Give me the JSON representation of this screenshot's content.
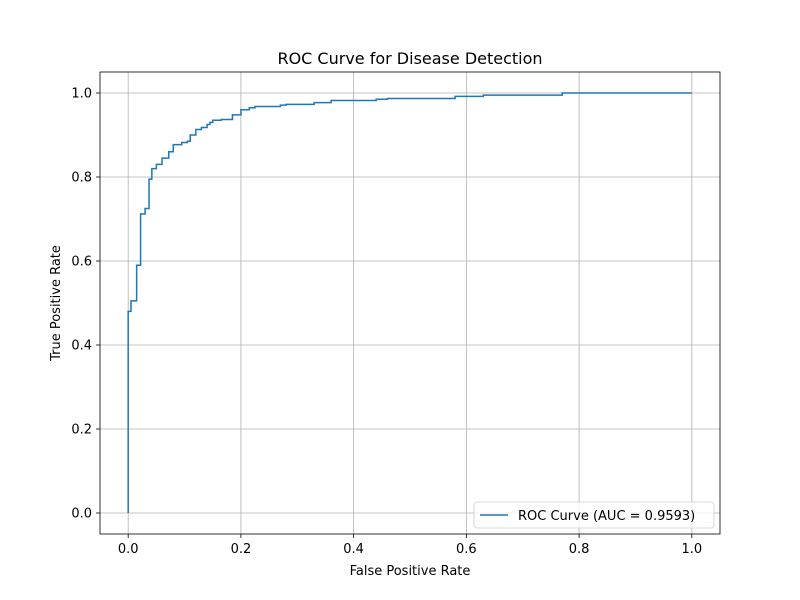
{
  "chart_data": {
    "type": "line",
    "title": "ROC Curve for Disease Detection",
    "xlabel": "False Positive Rate",
    "ylabel": "True Positive Rate",
    "xlim": [
      -0.05,
      1.05
    ],
    "ylim": [
      -0.05,
      1.05
    ],
    "xticks": [
      0.0,
      0.2,
      0.4,
      0.6,
      0.8,
      1.0
    ],
    "yticks": [
      0.0,
      0.2,
      0.4,
      0.6,
      0.8,
      1.0
    ],
    "xtick_labels": [
      "0.0",
      "0.2",
      "0.4",
      "0.6",
      "0.8",
      "1.0"
    ],
    "ytick_labels": [
      "0.0",
      "0.2",
      "0.4",
      "0.6",
      "0.8",
      "1.0"
    ],
    "grid": true,
    "legend_position": "lower-right",
    "series": [
      {
        "name": "ROC Curve (AUC = 0.9593)",
        "color": "#1f77b4",
        "step": true,
        "x": [
          0.0,
          0.0,
          0.005,
          0.005,
          0.015,
          0.015,
          0.022,
          0.022,
          0.03,
          0.03,
          0.037,
          0.037,
          0.042,
          0.042,
          0.05,
          0.05,
          0.06,
          0.06,
          0.072,
          0.072,
          0.08,
          0.08,
          0.095,
          0.095,
          0.105,
          0.105,
          0.11,
          0.11,
          0.12,
          0.12,
          0.13,
          0.13,
          0.14,
          0.14,
          0.145,
          0.145,
          0.15,
          0.15,
          0.165,
          0.165,
          0.185,
          0.185,
          0.2,
          0.2,
          0.215,
          0.215,
          0.225,
          0.225,
          0.27,
          0.27,
          0.28,
          0.28,
          0.33,
          0.33,
          0.36,
          0.36,
          0.44,
          0.44,
          0.46,
          0.46,
          0.58,
          0.58,
          0.63,
          0.63,
          0.77,
          0.77,
          1.0
        ],
        "y": [
          0.0,
          0.48,
          0.48,
          0.505,
          0.505,
          0.59,
          0.59,
          0.712,
          0.712,
          0.725,
          0.725,
          0.795,
          0.795,
          0.82,
          0.82,
          0.83,
          0.83,
          0.845,
          0.845,
          0.86,
          0.86,
          0.877,
          0.877,
          0.882,
          0.882,
          0.885,
          0.885,
          0.9,
          0.9,
          0.913,
          0.913,
          0.918,
          0.918,
          0.925,
          0.925,
          0.93,
          0.93,
          0.935,
          0.935,
          0.937,
          0.937,
          0.948,
          0.948,
          0.96,
          0.96,
          0.965,
          0.965,
          0.968,
          0.968,
          0.971,
          0.971,
          0.973,
          0.973,
          0.977,
          0.977,
          0.982,
          0.982,
          0.985,
          0.985,
          0.987,
          0.987,
          0.992,
          0.992,
          0.995,
          0.995,
          1.0,
          1.0
        ]
      }
    ]
  }
}
